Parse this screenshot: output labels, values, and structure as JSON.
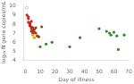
{
  "chart_data": {
    "type": "scatter",
    "xlabel": "Day of illness",
    "ylabel": "log₁₀ N gene copies/mL",
    "xlim": [
      -1,
      70
    ],
    "ylim": [
      4,
      10.2
    ],
    "xticks": [
      0,
      10,
      20,
      30,
      40,
      50,
      60,
      70
    ],
    "yticks": [
      4,
      5,
      6,
      7,
      8,
      9,
      10
    ],
    "grid": false,
    "series": [
      {
        "marker": "open circle",
        "color": "#aaaaaa",
        "x": [
          1
        ],
        "values": [
          9.8
        ]
      },
      {
        "marker": "circle",
        "x": [
          1,
          2,
          2,
          2,
          3,
          3,
          3,
          3,
          4,
          4,
          4,
          4,
          5,
          5,
          5,
          5,
          6,
          6,
          6,
          7,
          7,
          8,
          9,
          10,
          11,
          14,
          18,
          30,
          37,
          50,
          55,
          57,
          58,
          60,
          62,
          63,
          67
        ],
        "values": [
          9.0,
          8.8,
          8.6,
          8.2,
          8.1,
          8.0,
          7.9,
          7.8,
          8.3,
          7.7,
          7.5,
          7.2,
          7.6,
          7.3,
          7.0,
          6.8,
          7.4,
          7.1,
          6.5,
          7.6,
          7.0,
          6.7,
          6.6,
          5.5,
          7.7,
          5.8,
          6.0,
          5.5,
          6.5,
          7.5,
          7.2,
          7.0,
          6.8,
          7.1,
          6.7,
          5.2,
          6.8
        ],
        "colors": [
          "#cc2222",
          "#cc2222",
          "#cc2222",
          "#cc2222",
          "#cc2222",
          "#cc2222",
          "#cc2222",
          "#cc2222",
          "#cc2222",
          "#8B4513",
          "#cc2222",
          "#cc2222",
          "#cc2222",
          "#8B4513",
          "#cc2222",
          "#ccaa00",
          "#8B4513",
          "#cc2222",
          "#ccaa00",
          "#8B4513",
          "#cc2222",
          "#8B4513",
          "#8B4513",
          "#2e8b2e",
          "#8B4513",
          "#2e8b2e",
          "#2e8b2e",
          "#2e8b2e",
          "#2e8b2e",
          "#2e8b2e",
          "#2e8b2e",
          "#2e8b2e",
          "#2e8b2e",
          "#2e8b2e",
          "#2e8b2e",
          "#2e8b2e",
          "#2e8b2e"
        ]
      }
    ]
  }
}
